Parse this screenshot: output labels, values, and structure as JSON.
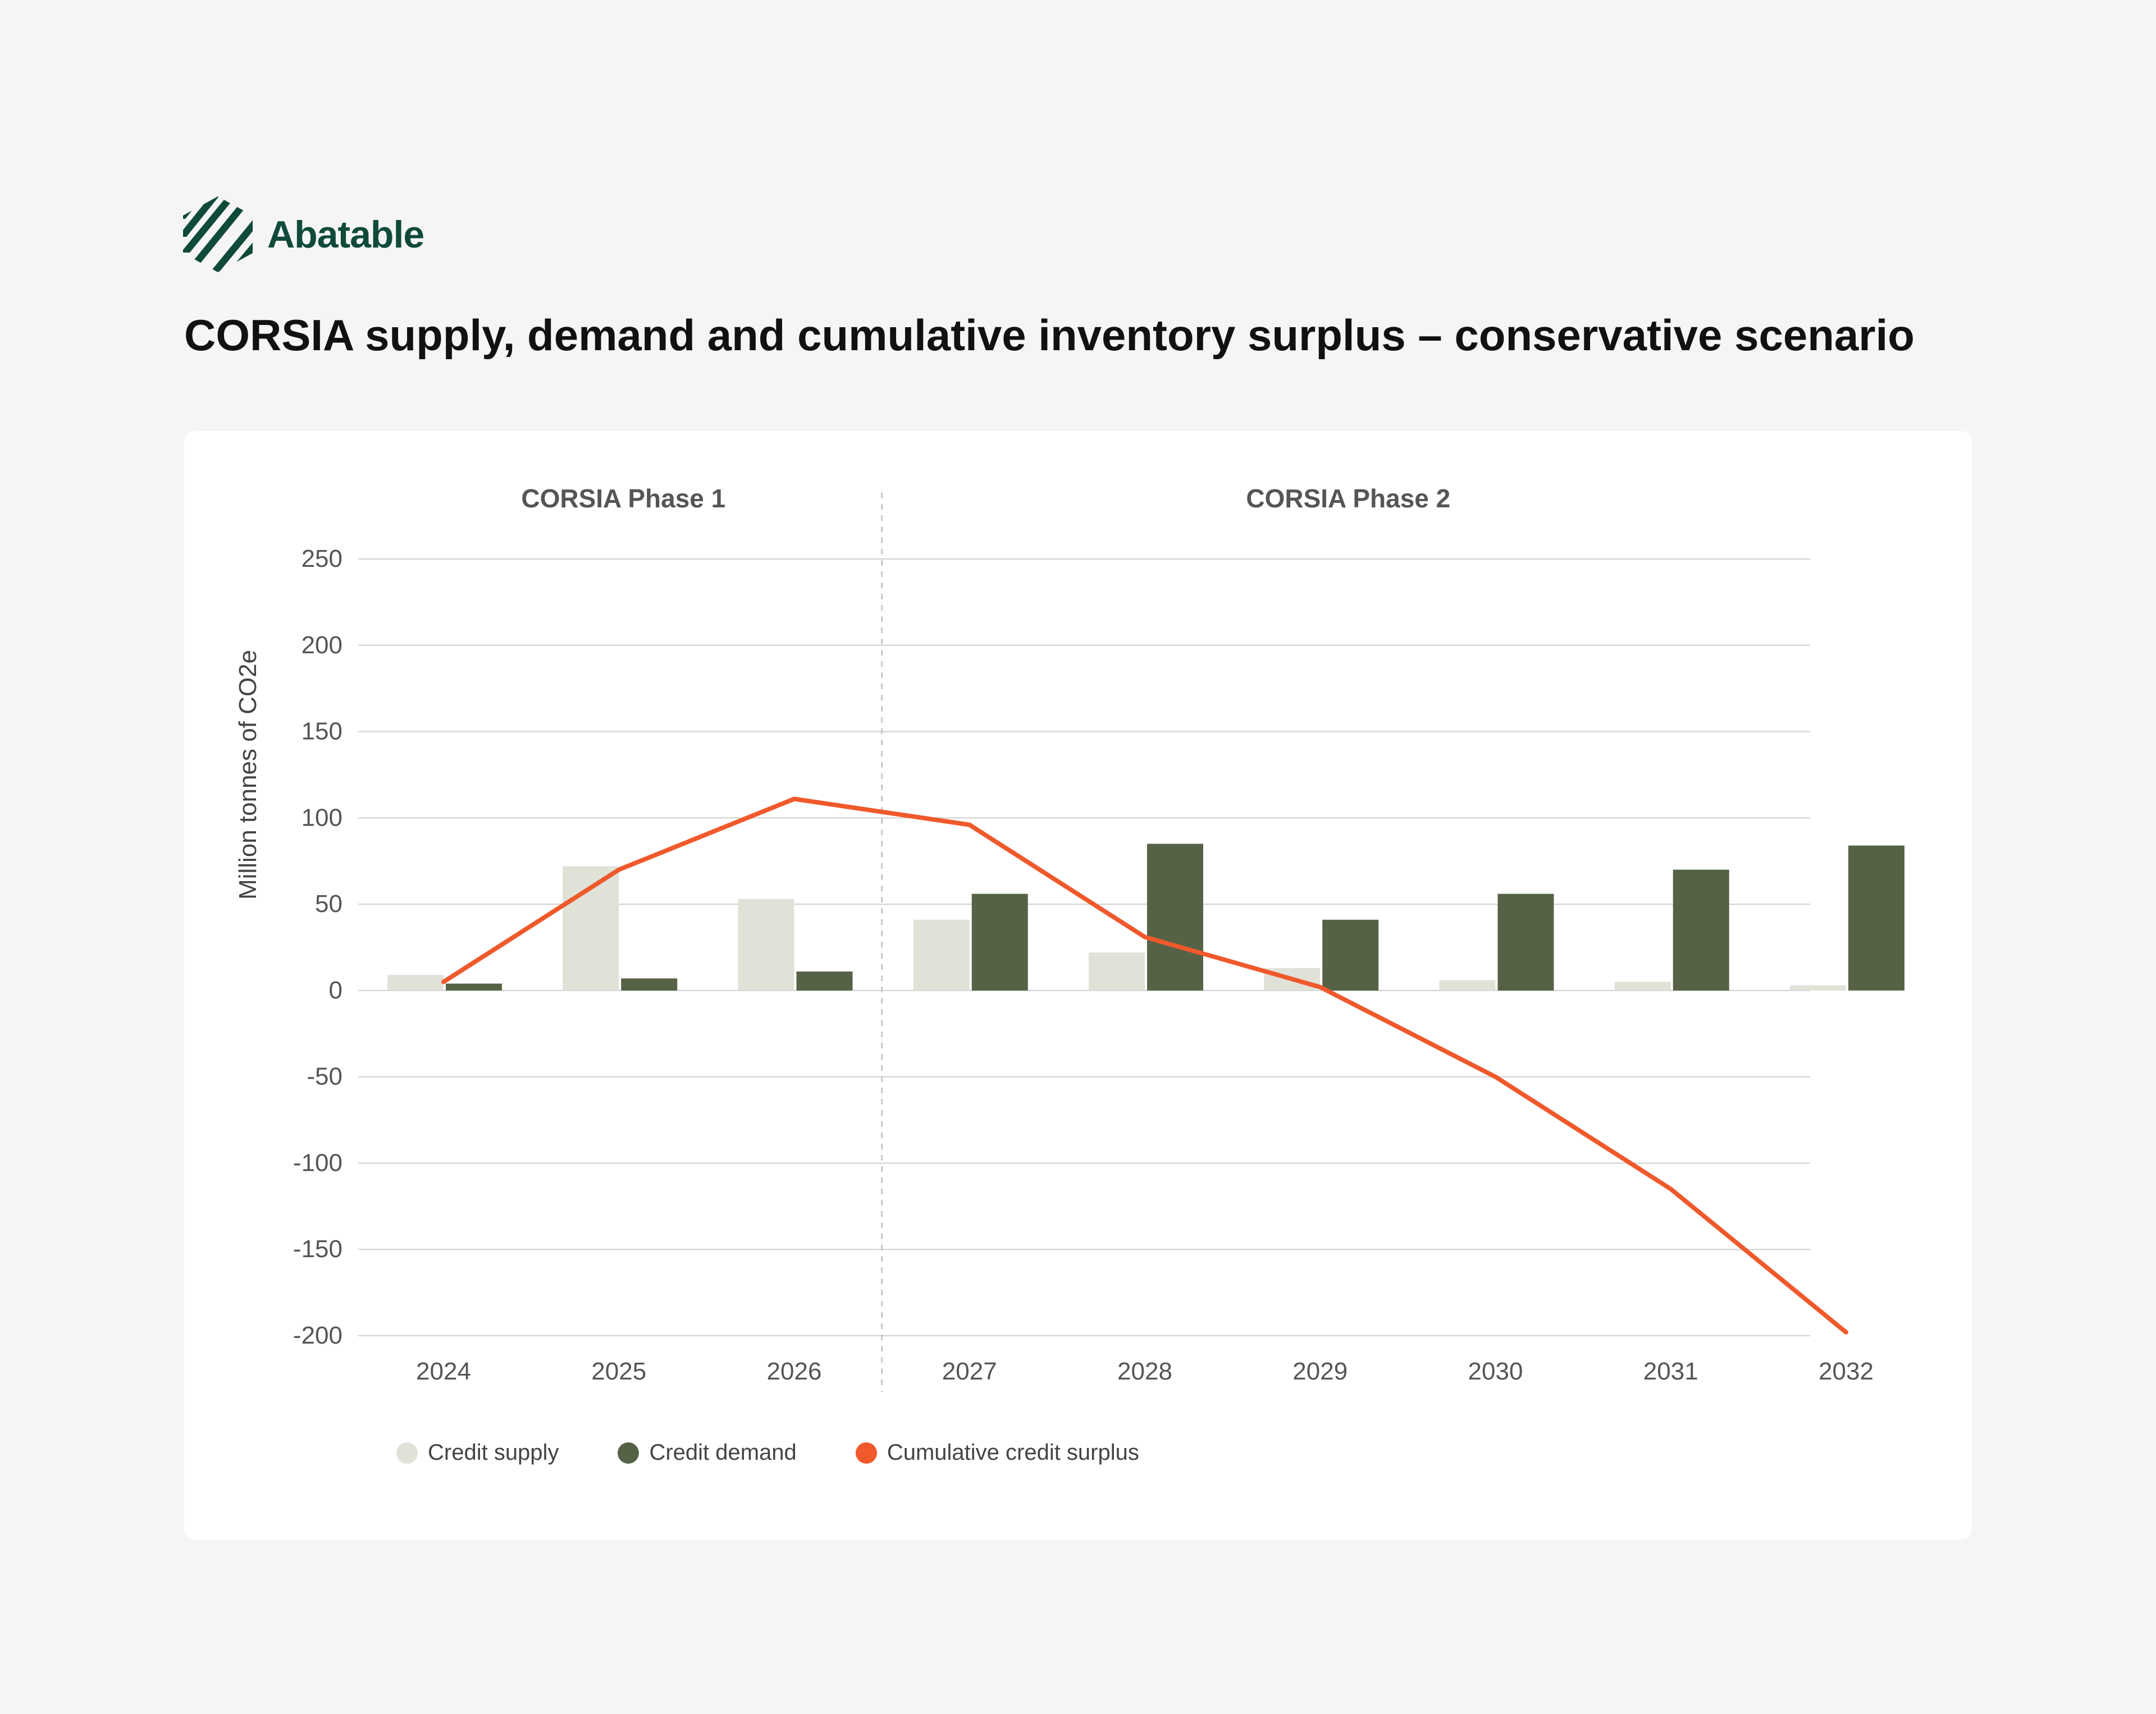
{
  "brand": {
    "name": "Abatable",
    "logo_icon": "striped-hexagon-logo"
  },
  "colors": {
    "supply": "#e0e2d8",
    "demand": "#566245",
    "surplus": "#f0592b",
    "brand": "#0f4a3a"
  },
  "chart_data": {
    "type": "bar",
    "title": "CORSIA supply, demand and cumulative inventory surplus – conservative scenario",
    "xlabel": "",
    "ylabel": "Million tonnes of CO2e",
    "ylim": [
      -200,
      250
    ],
    "yticks": [
      250,
      200,
      150,
      100,
      50,
      0,
      -50,
      -100,
      -150,
      -200
    ],
    "categories": [
      "2024",
      "2025",
      "2026",
      "2027",
      "2028",
      "2029",
      "2030",
      "2031",
      "2032"
    ],
    "phases": [
      {
        "label": "CORSIA Phase 1",
        "from": "2024",
        "to": "2026"
      },
      {
        "label": "CORSIA Phase 2",
        "from": "2027",
        "to": "2032"
      }
    ],
    "series": [
      {
        "name": "Credit supply",
        "kind": "bar",
        "values": [
          9,
          72,
          53,
          41,
          22,
          13,
          6,
          5,
          3
        ]
      },
      {
        "name": "Credit demand",
        "kind": "bar",
        "values": [
          4,
          7,
          11,
          56,
          85,
          41,
          56,
          70,
          84
        ]
      },
      {
        "name": "Cumulative credit surplus",
        "kind": "line",
        "values": [
          5,
          70,
          111,
          96,
          31,
          2,
          -50,
          -115,
          -198
        ]
      }
    ],
    "grid": true,
    "legend": "bottom-left"
  }
}
